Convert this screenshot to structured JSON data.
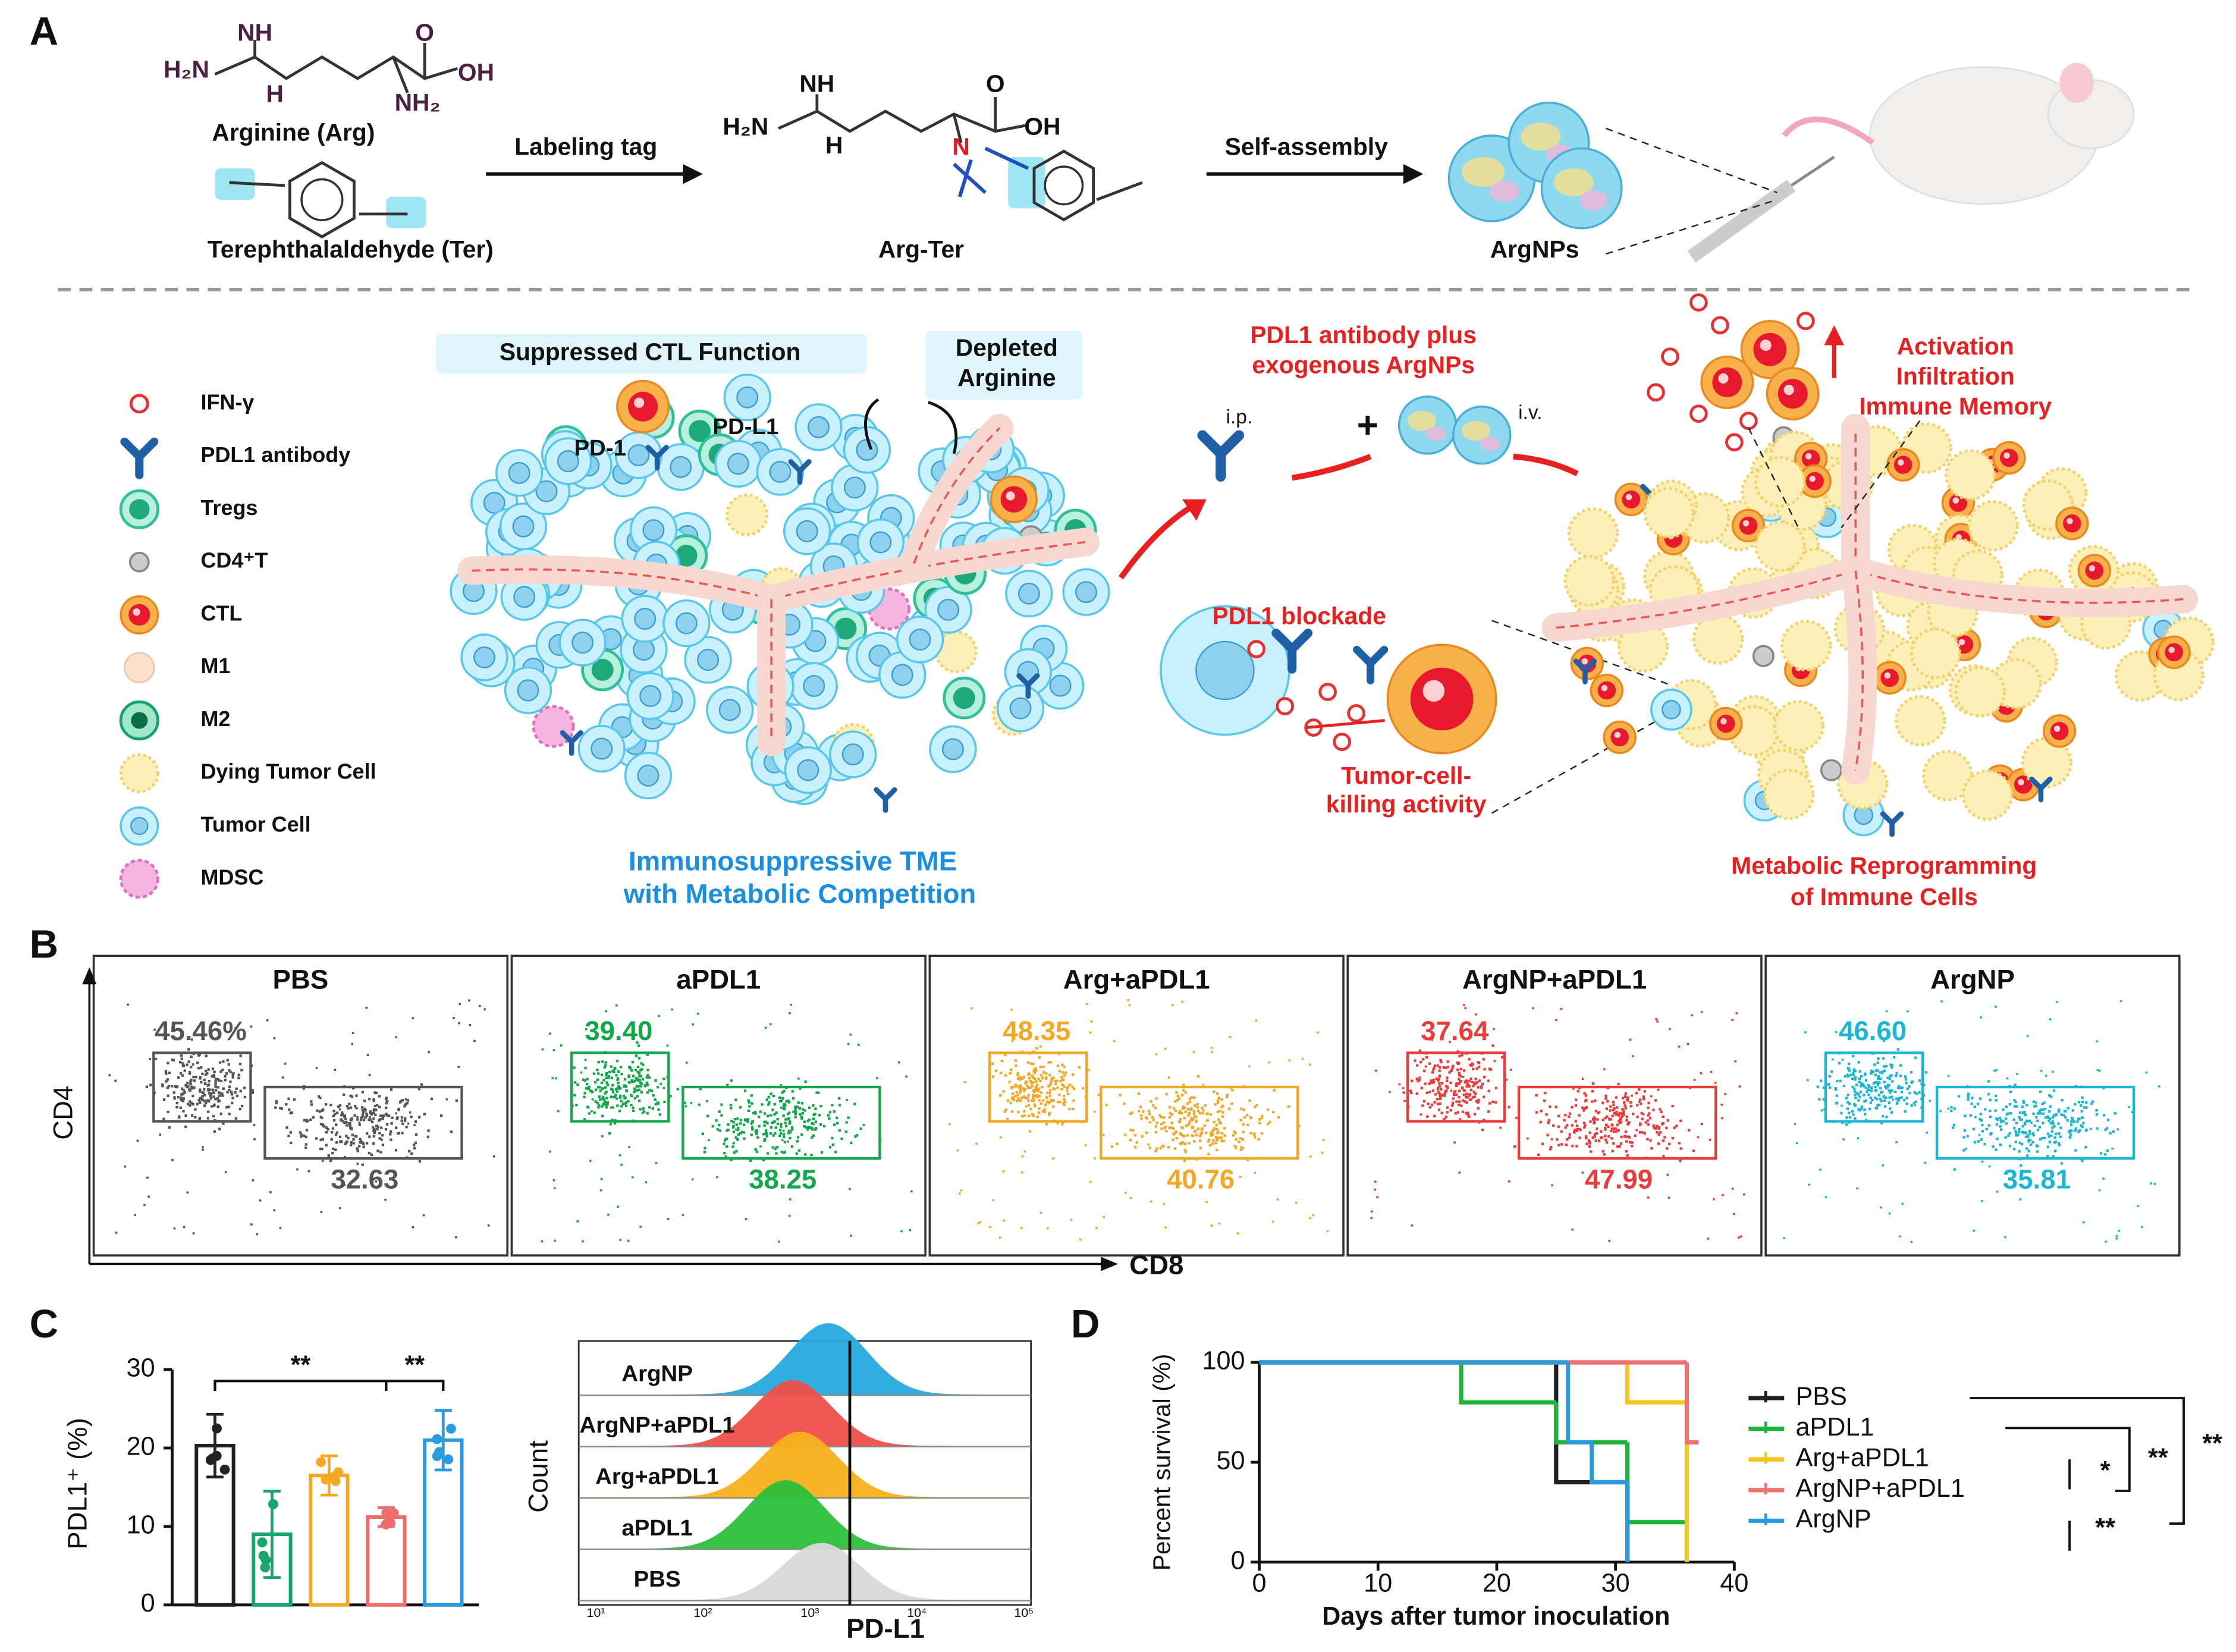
{
  "panel_labels": [
    "A",
    "B",
    "C",
    "D"
  ],
  "panel_a": {
    "arginine_atoms": [
      "NH",
      "H₂N",
      "H",
      "O",
      "OH",
      "NH₂"
    ],
    "arginine": "Arginine (Arg)",
    "terephthalaldehyde": "Terephthalaldehyde (Ter)",
    "step1": "Labeling tag",
    "arg_ter_atoms": [
      "NH",
      "H₂N",
      "H",
      "O",
      "OH",
      "N"
    ],
    "arg_ter": "Arg-Ter",
    "step2": "Self-assembly",
    "argnps": "ArgNPs",
    "legend": [
      "IFN-γ",
      "PDL1 antibody",
      "Tregs",
      "CD4⁺T",
      "CTL",
      "M1",
      "M2",
      "Dying Tumor Cell",
      "Tumor Cell",
      "MDSC"
    ],
    "suppressed": "Suppressed CTL Function",
    "depleted": [
      "Depleted",
      "Arginine"
    ],
    "pd1": "PD-1",
    "pdl1": "PD-L1",
    "tme": [
      "Immunosuppressive TME",
      "with Metabolic Competition"
    ],
    "treatment": [
      "PDL1 antibody plus",
      "exogenous ArgNPs"
    ],
    "ip": "i.p.",
    "plus": "+",
    "iv": "i.v.",
    "effects": [
      "Activation",
      "Infiltration",
      "Immune Memory"
    ],
    "blockade": "PDL1 blockade",
    "killing": [
      "Tumor-cell-",
      "killing activity"
    ],
    "reprogramming": [
      "Metabolic Reprogramming",
      "of Immune Cells"
    ]
  },
  "panel_b": {
    "y_label": "CD4",
    "x_label": "CD8",
    "plots": [
      {
        "title": "PBS",
        "upper": "45.46%",
        "lower": "32.63",
        "color": "#555555"
      },
      {
        "title": "aPDL1",
        "upper": "39.40",
        "lower": "38.25",
        "color": "#12a84a"
      },
      {
        "title": "Arg+aPDL1",
        "upper": "48.35",
        "lower": "40.76",
        "color": "#f5a623"
      },
      {
        "title": "ArgNP+aPDL1",
        "upper": "37.64",
        "lower": "47.99",
        "color": "#ec3b3b"
      },
      {
        "title": "ArgNP",
        "upper": "46.60",
        "lower": "35.81",
        "color": "#19b6d6"
      }
    ]
  },
  "histogram": {
    "labels": [
      "ArgNP",
      "ArgNP+aPDL1",
      "Arg+aPDL1",
      "aPDL1",
      "PBS"
    ],
    "colors": [
      "#27a9e1",
      "#f0504a",
      "#f7b21b",
      "#2cbf3a",
      "#d9d9d9"
    ],
    "y_label": "Count",
    "x_label": "PD-L1",
    "ticks": [
      "10¹",
      "10²",
      "10³",
      "10⁴",
      "10⁵"
    ]
  },
  "chart_data": [
    {
      "type": "bar",
      "ylabel": "PDL1⁺ (%)",
      "categories": [
        null,
        null,
        null,
        null,
        null
      ],
      "values": [
        20.3,
        9,
        16.5,
        11.2,
        21
      ],
      "errors": [
        4,
        5.5,
        2.5,
        1.2,
        3.8
      ],
      "colors": [
        "#222222",
        "#16a86a",
        "#f7a823",
        "#f26b6b",
        "#2b9be0"
      ],
      "ylim": [
        0,
        30
      ],
      "yticks": [
        0,
        10,
        20,
        30
      ],
      "annotations": [
        "**",
        "**"
      ]
    },
    {
      "type": "line",
      "xlabel": "Days after tumor inoculation",
      "ylabel": "Percent survival (%)",
      "xlim": [
        0,
        40
      ],
      "xticks": [
        0,
        10,
        20,
        30,
        40
      ],
      "ylim": [
        0,
        100
      ],
      "yticks": [
        0,
        50,
        100
      ],
      "series": [
        {
          "name": "PBS",
          "color": "#222222",
          "x": [
            0,
            25,
            31
          ],
          "values": [
            100,
            40,
            0
          ]
        },
        {
          "name": "aPDL1",
          "color": "#1db53a",
          "x": [
            0,
            17,
            25,
            31,
            36
          ],
          "values": [
            100,
            80,
            60,
            20,
            0
          ]
        },
        {
          "name": "Arg+aPDL1",
          "color": "#f5c518",
          "x": [
            0,
            31,
            36
          ],
          "values": [
            100,
            80,
            0
          ]
        },
        {
          "name": "ArgNP+aPDL1",
          "color": "#f07070",
          "x": [
            0,
            36,
            37
          ],
          "values": [
            100,
            60,
            60
          ]
        },
        {
          "name": "ArgNP",
          "color": "#2b9be0",
          "x": [
            0,
            26,
            28,
            31
          ],
          "values": [
            100,
            60,
            40,
            0
          ]
        }
      ],
      "annotations": [
        "*",
        "**",
        "**",
        "**"
      ]
    }
  ]
}
